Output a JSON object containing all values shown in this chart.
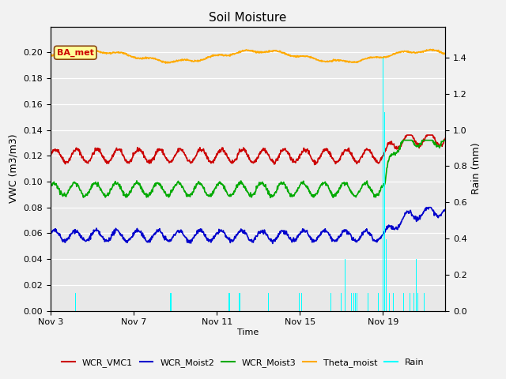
{
  "title": "Soil Moisture",
  "xlabel": "Time",
  "ylabel_left": "VWC (m3/m3)",
  "ylabel_right": "Rain (mm)",
  "figure_facecolor": "#f2f2f2",
  "plot_facecolor": "#e8e8e8",
  "annotation_text": "BA_met",
  "annotation_bbox_facecolor": "#ffff99",
  "annotation_bbox_edgecolor": "#8B4513",
  "ylim_left": [
    0.0,
    0.22
  ],
  "ylim_right": [
    0.0,
    1.5714
  ],
  "yticks_left": [
    0.0,
    0.02,
    0.04,
    0.06,
    0.08,
    0.1,
    0.12,
    0.14,
    0.16,
    0.18,
    0.2
  ],
  "yticks_right": [
    0.0,
    0.2,
    0.4,
    0.6,
    0.8,
    1.0,
    1.2,
    1.4
  ],
  "xlim": [
    0,
    19
  ],
  "colors": {
    "WCR_VMC1": "#cc0000",
    "WCR_Moist2": "#0000cc",
    "WCR_Moist3": "#00aa00",
    "Theta_moist": "#ffaa00",
    "Rain": "#00ffff"
  },
  "legend_labels": [
    "WCR_VMC1",
    "WCR_Moist2",
    "WCR_Moist3",
    "Theta_moist",
    "Rain"
  ],
  "xtick_labels": [
    "Nov 3",
    "Nov 7",
    "Nov 11",
    "Nov 15",
    "Nov 19"
  ],
  "xtick_positions": [
    0,
    4,
    8,
    12,
    16
  ],
  "rain_events": [
    [
      1.2,
      0.1
    ],
    [
      5.8,
      0.1
    ],
    [
      8.6,
      0.1
    ],
    [
      9.1,
      0.1
    ],
    [
      10.5,
      0.1
    ],
    [
      12.0,
      0.1
    ],
    [
      12.1,
      0.1
    ],
    [
      13.5,
      0.1
    ],
    [
      14.0,
      0.1
    ],
    [
      14.2,
      0.285
    ],
    [
      14.5,
      0.1
    ],
    [
      14.6,
      0.1
    ],
    [
      14.7,
      0.1
    ],
    [
      14.75,
      0.1
    ],
    [
      15.3,
      0.1
    ],
    [
      15.8,
      0.1
    ],
    [
      16.0,
      1.4
    ],
    [
      16.1,
      1.1
    ],
    [
      16.15,
      0.395
    ],
    [
      16.3,
      0.1
    ],
    [
      16.5,
      0.1
    ],
    [
      17.0,
      0.1
    ],
    [
      17.3,
      0.1
    ],
    [
      17.5,
      0.1
    ],
    [
      17.6,
      0.285
    ],
    [
      17.7,
      0.1
    ],
    [
      18.0,
      0.1
    ]
  ]
}
